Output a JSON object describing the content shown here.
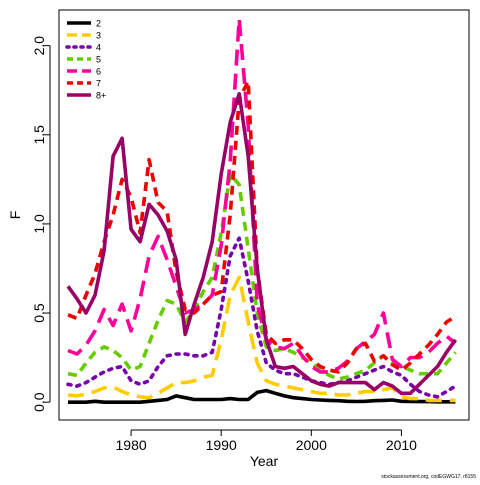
{
  "chart_data": {
    "type": "line",
    "xlabel": "Year",
    "ylabel": "F",
    "xlim": [
      1972,
      2017.5
    ],
    "ylim": [
      -0.1,
      2.2
    ],
    "xticks": [
      1980,
      1990,
      2000,
      2010
    ],
    "xtick_labels": [
      "1980",
      "1990",
      "2000",
      "2010"
    ],
    "yticks": [
      0.0,
      0.5,
      1.0,
      1.5,
      2.0
    ],
    "ytick_labels": [
      "0.0",
      "0.5",
      "1.0",
      "1.5",
      "2.0"
    ],
    "grid": false,
    "legend": "top-left",
    "footnote": "stockassessment.org, codEGWG17, r8155",
    "x": [
      1973,
      1974,
      1975,
      1976,
      1977,
      1978,
      1979,
      1980,
      1981,
      1982,
      1983,
      1984,
      1985,
      1986,
      1987,
      1988,
      1989,
      1990,
      1991,
      1992,
      1993,
      1994,
      1995,
      1996,
      1997,
      1998,
      1999,
      2000,
      2001,
      2002,
      2003,
      2004,
      2005,
      2006,
      2007,
      2008,
      2009,
      2010,
      2011,
      2012,
      2013,
      2014,
      2015,
      2016
    ],
    "series": [
      {
        "name": "2",
        "color": "#000000",
        "dash": "solid",
        "values": [
          0.0,
          0.0,
          0.0,
          0.005,
          0.0,
          0.0,
          0.0,
          0.0,
          0.0,
          0.005,
          0.01,
          0.015,
          0.035,
          0.025,
          0.015,
          0.015,
          0.015,
          0.015,
          0.02,
          0.015,
          0.015,
          0.055,
          0.065,
          0.05,
          0.035,
          0.025,
          0.02,
          0.015,
          0.012,
          0.01,
          0.008,
          0.005,
          0.004,
          0.005,
          0.008,
          0.01,
          0.012,
          0.005,
          0.004,
          0.003,
          0.003,
          0.002,
          0.002,
          0.002
        ]
      },
      {
        "name": "3",
        "color": "#FFCC00",
        "dash": "longdash",
        "values": [
          0.04,
          0.035,
          0.045,
          0.06,
          0.08,
          0.085,
          0.06,
          0.04,
          0.03,
          0.025,
          0.05,
          0.08,
          0.11,
          0.11,
          0.12,
          0.14,
          0.15,
          0.35,
          0.6,
          0.7,
          0.45,
          0.22,
          0.12,
          0.1,
          0.09,
          0.08,
          0.07,
          0.06,
          0.05,
          0.05,
          0.04,
          0.04,
          0.05,
          0.06,
          0.06,
          0.07,
          0.08,
          0.03,
          0.02,
          0.02,
          0.01,
          0.01,
          0.01,
          0.01
        ]
      },
      {
        "name": "4",
        "color": "#7700AA",
        "dash": "dotted",
        "values": [
          0.1,
          0.09,
          0.11,
          0.14,
          0.17,
          0.19,
          0.2,
          0.12,
          0.1,
          0.12,
          0.2,
          0.26,
          0.27,
          0.27,
          0.26,
          0.26,
          0.28,
          0.52,
          0.82,
          0.92,
          0.68,
          0.4,
          0.22,
          0.18,
          0.16,
          0.16,
          0.14,
          0.12,
          0.11,
          0.1,
          0.11,
          0.12,
          0.14,
          0.16,
          0.18,
          0.2,
          0.17,
          0.15,
          0.1,
          0.06,
          0.04,
          0.03,
          0.06,
          0.09
        ]
      },
      {
        "name": "5",
        "color": "#66CC00",
        "dash": "dashed",
        "values": [
          0.16,
          0.15,
          0.22,
          0.28,
          0.31,
          0.29,
          0.25,
          0.18,
          0.2,
          0.33,
          0.46,
          0.57,
          0.55,
          0.45,
          0.52,
          0.62,
          0.7,
          0.95,
          1.28,
          1.22,
          0.86,
          0.5,
          0.31,
          0.29,
          0.3,
          0.28,
          0.25,
          0.22,
          0.18,
          0.15,
          0.13,
          0.14,
          0.16,
          0.18,
          0.22,
          0.26,
          0.22,
          0.2,
          0.18,
          0.16,
          0.16,
          0.16,
          0.22,
          0.28
        ]
      },
      {
        "name": "6",
        "color": "#FF0099",
        "dash": "longdash",
        "values": [
          0.29,
          0.27,
          0.32,
          0.4,
          0.52,
          0.43,
          0.55,
          0.4,
          0.58,
          0.82,
          0.93,
          0.8,
          0.65,
          0.5,
          0.52,
          0.55,
          0.6,
          0.88,
          1.35,
          2.15,
          1.55,
          0.55,
          0.35,
          0.31,
          0.3,
          0.33,
          0.26,
          0.2,
          0.17,
          0.17,
          0.19,
          0.23,
          0.3,
          0.34,
          0.38,
          0.5,
          0.24,
          0.2,
          0.25,
          0.25,
          0.28,
          0.33,
          0.37,
          0.33
        ]
      },
      {
        "name": "7",
        "color": "#EE0000",
        "dash": "dashed",
        "values": [
          0.49,
          0.47,
          0.6,
          0.72,
          0.9,
          1.05,
          1.25,
          1.15,
          0.95,
          1.36,
          1.12,
          1.07,
          0.73,
          0.52,
          0.5,
          0.55,
          0.6,
          0.62,
          1.05,
          1.7,
          1.8,
          0.75,
          0.38,
          0.33,
          0.35,
          0.35,
          0.3,
          0.24,
          0.2,
          0.18,
          0.17,
          0.22,
          0.3,
          0.33,
          0.23,
          0.26,
          0.21,
          0.18,
          0.22,
          0.27,
          0.32,
          0.38,
          0.45,
          0.48
        ]
      },
      {
        "name": "8+",
        "color": "#990066",
        "dash": "solid",
        "values": [
          0.65,
          0.58,
          0.5,
          0.6,
          0.85,
          1.38,
          1.48,
          0.97,
          0.9,
          1.11,
          1.05,
          0.96,
          0.8,
          0.38,
          0.55,
          0.7,
          0.9,
          1.28,
          1.57,
          1.73,
          1.38,
          0.75,
          0.35,
          0.2,
          0.19,
          0.2,
          0.16,
          0.12,
          0.1,
          0.09,
          0.11,
          0.11,
          0.11,
          0.11,
          0.07,
          0.11,
          0.09,
          0.05,
          0.05,
          0.1,
          0.15,
          0.2,
          0.28,
          0.35
        ]
      }
    ]
  }
}
